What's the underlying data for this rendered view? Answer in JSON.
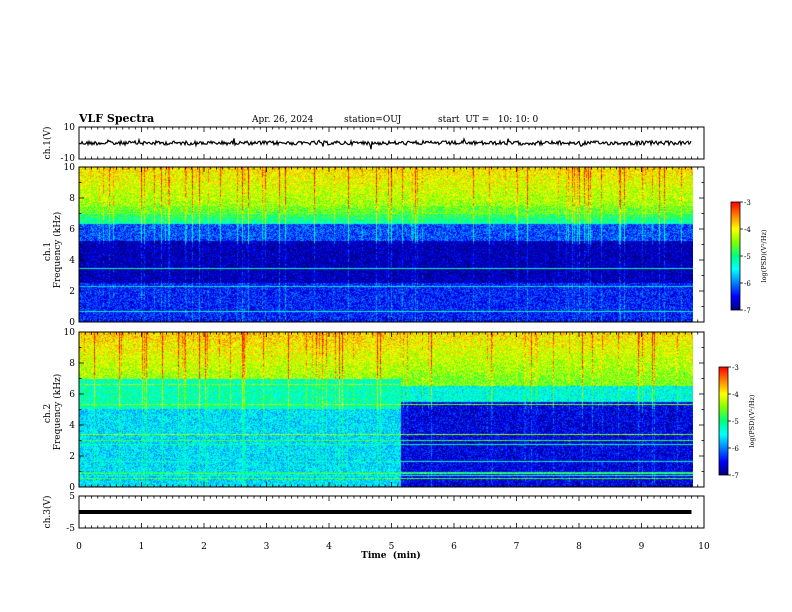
{
  "header": {
    "title": "VLF Spectra",
    "date": "Apr. 26, 2024",
    "station": "station=OUJ",
    "start": "start  UT =   10: 10: 0"
  },
  "chart_data": [
    {
      "type": "line",
      "name": "ch1-waveform",
      "ylabel": "ch.1(V)",
      "ylim": [
        -10,
        10
      ],
      "yticks": [
        "10",
        "-10"
      ],
      "xlim": [
        0,
        10
      ],
      "data_end_min": 9.8,
      "level": 0
    },
    {
      "type": "heatmap",
      "name": "ch1-spectrogram",
      "ylabel": "ch.1\nFrequency (kHz)",
      "ylim": [
        0,
        10
      ],
      "yticks": [
        "0",
        "2",
        "4",
        "6",
        "8",
        "10"
      ],
      "xlim": [
        0,
        10
      ],
      "data_end_min": 9.8,
      "colorbar": {
        "label": "log(PSD)(V²/Hz)",
        "range": [
          -7,
          -3
        ],
        "ticks": [
          "-3",
          "-4",
          "-5",
          "-6",
          "-7"
        ]
      }
    },
    {
      "type": "heatmap",
      "name": "ch2-spectrogram",
      "ylabel": "ch.2\nFrequency (kHz)",
      "ylim": [
        0,
        10
      ],
      "yticks": [
        "0",
        "2",
        "4",
        "6",
        "8",
        "10"
      ],
      "xlim": [
        0,
        10
      ],
      "data_end_min": 9.8,
      "regime_change_min": 5.15,
      "colorbar": {
        "label": "log(PSD)(V²/Hz)",
        "range": [
          -7,
          -3
        ],
        "ticks": [
          "-3",
          "-4",
          "-5",
          "-6",
          "-7"
        ]
      }
    },
    {
      "type": "line",
      "name": "ch3-waveform",
      "ylabel": "ch.3(V)",
      "ylim": [
        -5,
        5
      ],
      "yticks": [
        "5",
        "-5"
      ],
      "xlim": [
        0,
        10
      ],
      "data_end_min": 9.8,
      "level": 0
    }
  ],
  "x_axis": {
    "label": "Time  (min)",
    "ticks": [
      "0",
      "1",
      "2",
      "3",
      "4",
      "5",
      "6",
      "7",
      "8",
      "9",
      "10"
    ]
  },
  "colors": {
    "colormap": [
      "#000080",
      "#0000ff",
      "#0080ff",
      "#00ffff",
      "#00ff80",
      "#80ff00",
      "#ffff00",
      "#ff8000",
      "#ff0000"
    ],
    "axes": "#000000",
    "background": "#ffffff"
  }
}
